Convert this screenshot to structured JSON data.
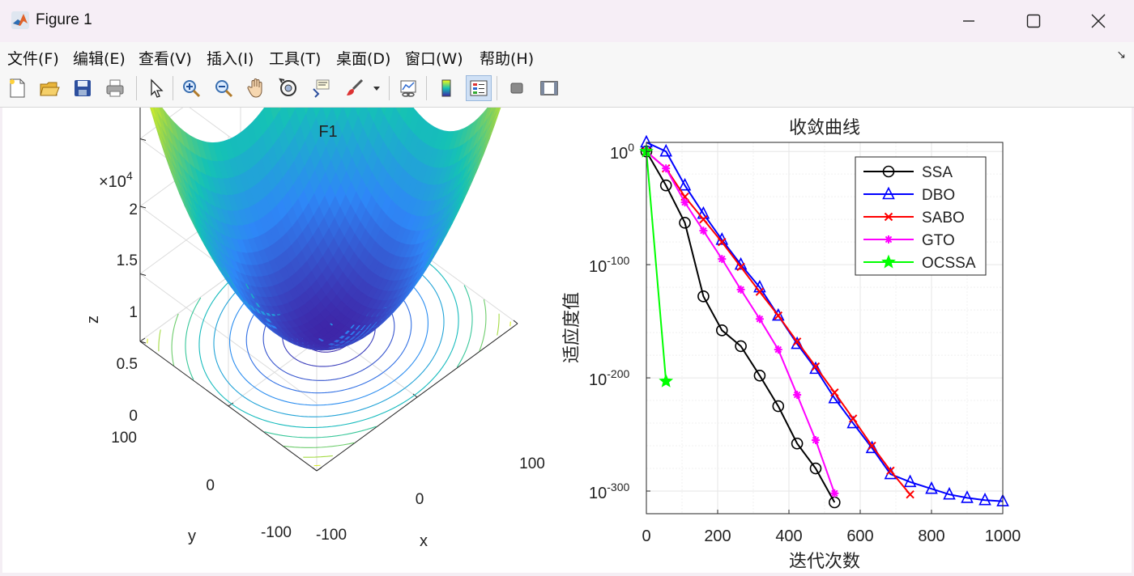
{
  "window": {
    "title": "Figure 1",
    "controls": [
      "minimize-icon",
      "maximize-icon",
      "close-icon"
    ]
  },
  "menu": [
    "文件(F)",
    "编辑(E)",
    "查看(V)",
    "插入(I)",
    "工具(T)",
    "桌面(D)",
    "窗口(W)",
    "帮助(H)"
  ],
  "toolbar": {
    "tools": [
      "new-figure-icon",
      "open-file-icon",
      "save-icon",
      "print-icon",
      "pointer-icon",
      "zoom-in-icon",
      "zoom-out-icon",
      "pan-hand-icon",
      "rotate-3d-icon",
      "data-cursor-icon",
      "brush-icon",
      "brush-dropdown-icon",
      "link-plot-icon",
      "colorbar-icon",
      "legend-icon",
      "hide-plot-tools-icon",
      "show-plot-tools-icon"
    ],
    "active_tool": "legend-icon"
  },
  "left_plot": {
    "title": "F1",
    "exponent_prefix": "×10",
    "exponent_power": "4",
    "zlabel": "z",
    "xlabel": "x",
    "ylabel": "y",
    "zticks": [
      "0",
      "0.5",
      "1",
      "1.5",
      "2"
    ],
    "xticks": [
      "-100",
      "0",
      "100"
    ],
    "yticks": [
      "-100",
      "0",
      "100"
    ],
    "surface_function": "x^2 + y^2",
    "colormap": [
      "#3e26a8",
      "#2e87f7",
      "#14c2b5",
      "#8bd156",
      "#f9fb0e"
    ]
  },
  "chart_data": {
    "type": "line",
    "title": "收敛曲线",
    "xlabel": "迭代次数",
    "ylabel": "适应度值",
    "xlim": [
      0,
      1000
    ],
    "ylim_log10": [
      -320,
      8
    ],
    "yscale": "log",
    "xticks": [
      "0",
      "200",
      "400",
      "600",
      "800",
      "1000"
    ],
    "ytick_base": "10",
    "ytick_exponents": [
      "0",
      "-100",
      "-200",
      "-300"
    ],
    "grid": true,
    "legend_position": "top-right",
    "series": [
      {
        "name": "SSA",
        "color": "#000000",
        "marker": "circle",
        "x": [
          0,
          55,
          108,
          160,
          212,
          265,
          318,
          370,
          423,
          475,
          528
        ],
        "log10_y": [
          0,
          -30,
          -63,
          -128,
          -158,
          -172,
          -198,
          -225,
          -258,
          -280,
          -310
        ]
      },
      {
        "name": "DBO",
        "color": "#0000ff",
        "marker": "triangle",
        "x": [
          0,
          55,
          108,
          160,
          212,
          265,
          318,
          370,
          423,
          475,
          528,
          580,
          633,
          685,
          740,
          800,
          850,
          900,
          950,
          1000
        ],
        "log10_y": [
          8,
          0,
          -30,
          -55,
          -78,
          -100,
          -120,
          -145,
          -170,
          -192,
          -218,
          -240,
          -262,
          -285,
          -292,
          -298,
          -303,
          -306,
          -308,
          -309
        ]
      },
      {
        "name": "SABO",
        "color": "#ff0000",
        "marker": "x",
        "x": [
          0,
          55,
          108,
          160,
          212,
          265,
          318,
          370,
          423,
          475,
          528,
          580,
          633,
          685,
          740
        ],
        "log10_y": [
          0,
          -15,
          -40,
          -60,
          -80,
          -102,
          -124,
          -145,
          -168,
          -190,
          -213,
          -236,
          -260,
          -282,
          -303
        ]
      },
      {
        "name": "GTO",
        "color": "#ff00ff",
        "marker": "asterisk",
        "x": [
          0,
          55,
          108,
          160,
          212,
          265,
          318,
          370,
          423,
          475,
          528
        ],
        "log10_y": [
          0,
          -15,
          -45,
          -70,
          -95,
          -122,
          -148,
          -175,
          -215,
          -255,
          -302
        ]
      },
      {
        "name": "OCSSA",
        "color": "#00ff00",
        "marker": "star",
        "x": [
          0,
          55
        ],
        "log10_y": [
          0,
          -203
        ]
      }
    ]
  }
}
